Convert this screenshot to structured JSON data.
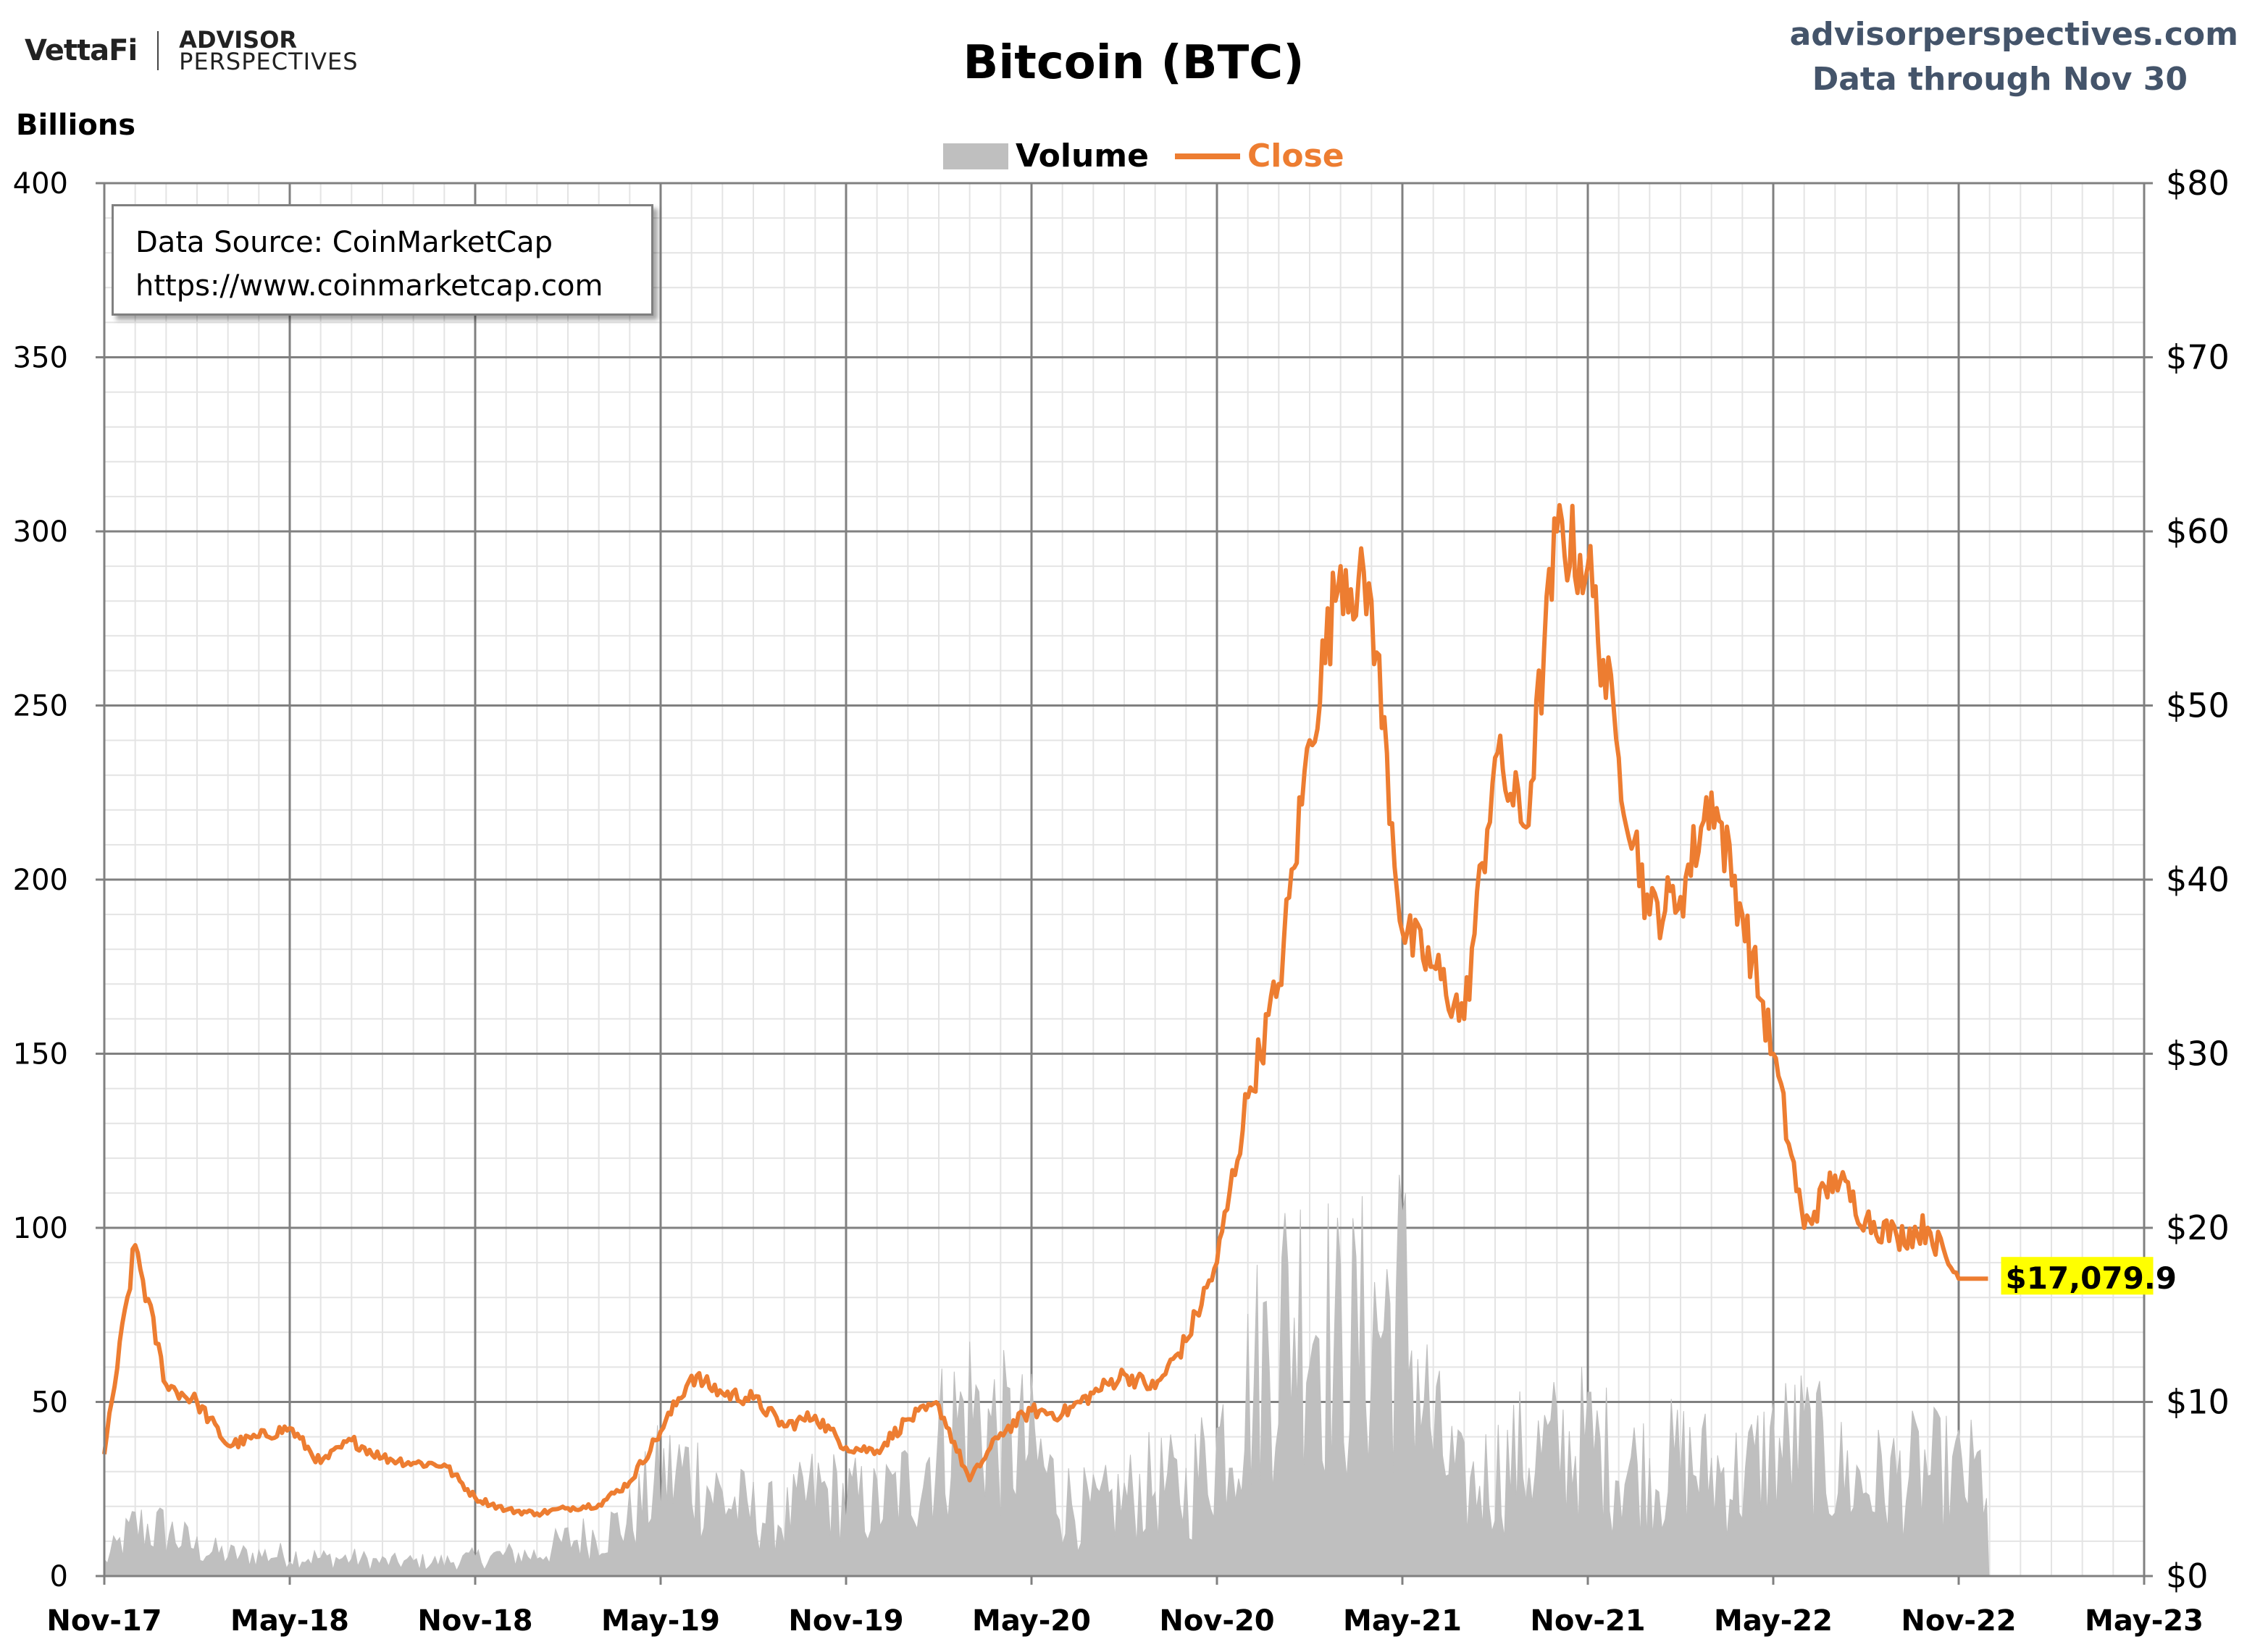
{
  "header": {
    "brand_left": "VettaFi",
    "brand_right_line1": "ADVISOR",
    "brand_right_line2": "PERSPECTIVES",
    "site": "advisorperspectives.com",
    "data_through": "Data through Nov 30"
  },
  "source_box": {
    "line1": "Data Source: CoinMarketCap",
    "line2": "https://www.coinmarketcap.com"
  },
  "colors": {
    "close": "#ED7D31",
    "volume": "#BFBFBF",
    "grid": "#808080",
    "minor_grid": "#E4E4E4",
    "label_highlight": "#FFFF00",
    "header_text": "#44546A"
  },
  "chart_data": {
    "type": "area",
    "title": "Bitcoin (BTC)",
    "y_left_label": "Billions",
    "y_left_ticks": [
      "0",
      "50",
      "100",
      "150",
      "200",
      "250",
      "300",
      "350",
      "400"
    ],
    "y_left_range": [
      0,
      400
    ],
    "y_right_ticks": [
      "$0",
      "$10",
      "$20",
      "$30",
      "$40",
      "$50",
      "$60",
      "$70",
      "$80"
    ],
    "y_right_range": [
      0,
      80
    ],
    "x_ticks": [
      "Nov-17",
      "May-18",
      "Nov-18",
      "May-19",
      "Nov-19",
      "May-20",
      "Nov-20",
      "May-21",
      "Nov-21",
      "May-22",
      "Nov-22",
      "May-23"
    ],
    "x_range": [
      "2017-11",
      "2023-05"
    ],
    "grid": true,
    "legend_position": "top-center",
    "last_label": "$17,079.9",
    "series": [
      {
        "name": "Volume",
        "axis": "left",
        "kind": "area",
        "x": [
          "2017-11",
          "2017-12",
          "2018-01",
          "2018-02",
          "2018-03",
          "2018-04",
          "2018-05",
          "2018-06",
          "2018-07",
          "2018-08",
          "2018-09",
          "2018-10",
          "2018-11",
          "2018-12",
          "2019-01",
          "2019-02",
          "2019-03",
          "2019-04",
          "2019-05",
          "2019-06",
          "2019-07",
          "2019-08",
          "2019-09",
          "2019-10",
          "2019-11",
          "2019-12",
          "2020-01",
          "2020-02",
          "2020-03",
          "2020-04",
          "2020-05",
          "2020-06",
          "2020-07",
          "2020-08",
          "2020-09",
          "2020-10",
          "2020-11",
          "2020-12",
          "2021-01",
          "2021-02",
          "2021-03",
          "2021-04",
          "2021-05",
          "2021-06",
          "2021-07",
          "2021-08",
          "2021-09",
          "2021-10",
          "2021-11",
          "2021-12",
          "2022-01",
          "2022-02",
          "2022-03",
          "2022-04",
          "2022-05",
          "2022-06",
          "2022-07",
          "2022-08",
          "2022-09",
          "2022-10",
          "2022-11"
        ],
        "values": [
          4,
          14,
          13,
          8,
          6,
          6,
          6,
          5,
          5,
          4,
          4,
          4,
          5,
          6,
          6,
          10,
          12,
          16,
          28,
          30,
          22,
          18,
          16,
          24,
          22,
          20,
          26,
          38,
          48,
          40,
          36,
          22,
          18,
          22,
          26,
          24,
          38,
          52,
          72,
          80,
          64,
          70,
          78,
          40,
          24,
          30,
          34,
          36,
          38,
          32,
          30,
          32,
          30,
          28,
          36,
          38,
          30,
          26,
          28,
          30,
          28
        ],
        "notes": "monthly typical daily volume in billions USD"
      },
      {
        "name": "Close",
        "axis": "right",
        "kind": "line",
        "x": [
          "2017-11",
          "2017-12",
          "2018-01",
          "2018-02",
          "2018-03",
          "2018-04",
          "2018-05",
          "2018-06",
          "2018-07",
          "2018-08",
          "2018-09",
          "2018-10",
          "2018-11",
          "2018-12",
          "2019-01",
          "2019-02",
          "2019-03",
          "2019-04",
          "2019-05",
          "2019-06",
          "2019-07",
          "2019-08",
          "2019-09",
          "2019-10",
          "2019-11",
          "2019-12",
          "2020-01",
          "2020-02",
          "2020-03",
          "2020-04",
          "2020-05",
          "2020-06",
          "2020-07",
          "2020-08",
          "2020-09",
          "2020-10",
          "2020-11",
          "2020-12",
          "2021-01",
          "2021-02",
          "2021-03",
          "2021-04",
          "2021-05",
          "2021-06",
          "2021-07",
          "2021-08",
          "2021-09",
          "2021-10",
          "2021-11",
          "2021-12",
          "2022-01",
          "2022-02",
          "2022-03",
          "2022-04",
          "2022-05",
          "2022-06",
          "2022-07",
          "2022-08",
          "2022-09",
          "2022-10",
          "2022-11"
        ],
        "values": [
          7.0,
          19.0,
          11.0,
          10.0,
          7.5,
          8.0,
          8.5,
          6.5,
          7.8,
          6.8,
          6.5,
          6.4,
          4.5,
          3.8,
          3.6,
          3.9,
          4.1,
          5.4,
          8.3,
          11.5,
          10.5,
          10.2,
          8.6,
          9.2,
          7.4,
          7.2,
          9.0,
          9.8,
          5.5,
          8.2,
          9.5,
          9.3,
          10.5,
          11.6,
          10.8,
          13.5,
          18.0,
          27.5,
          34.0,
          48.0,
          58.0,
          56.0,
          37.0,
          35.0,
          32.0,
          47.0,
          43.0,
          60.0,
          58.0,
          47.0,
          38.0,
          39.0,
          45.0,
          38.0,
          30.0,
          20.0,
          23.0,
          20.5,
          19.5,
          20.0,
          17.08
        ]
      }
    ]
  }
}
